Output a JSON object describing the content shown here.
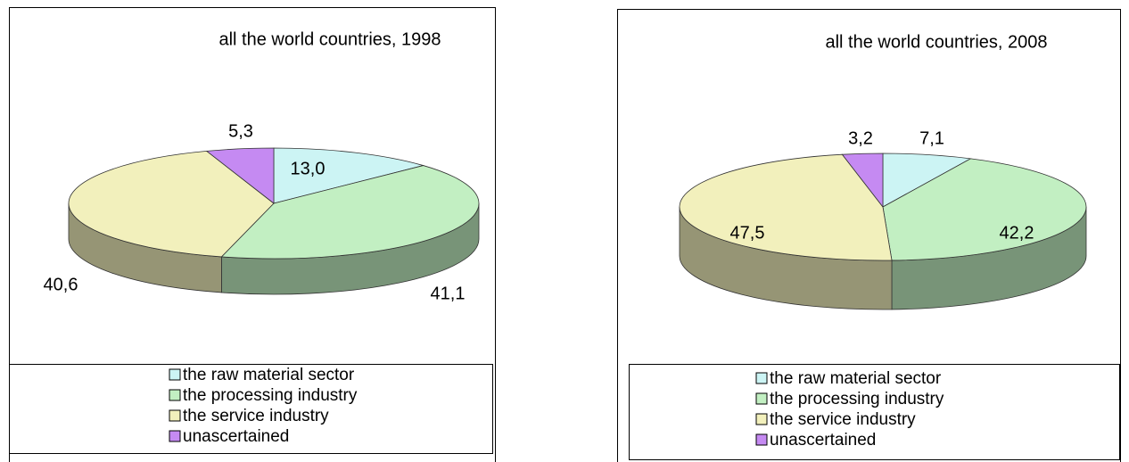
{
  "chart_data": [
    {
      "type": "pie",
      "title": "all the world countries, 1998",
      "categories": [
        "the raw material sector",
        "the processing industry",
        "the service industry",
        "unascertained"
      ],
      "values": [
        13.0,
        41.1,
        40.6,
        5.3
      ],
      "value_labels": [
        "13,0",
        "41,1",
        "40,6",
        "5,3"
      ],
      "colors": [
        "#ccf4f4",
        "#c2efc2",
        "#f2f0bc",
        "#c58af2"
      ],
      "legend": "bottom"
    },
    {
      "type": "pie",
      "title": "all the world countries, 2008",
      "categories": [
        "the raw material sector",
        "the processing industry",
        "the service industry",
        "unascertained"
      ],
      "values": [
        7.1,
        42.2,
        47.5,
        3.2
      ],
      "value_labels": [
        "7,1",
        "42,2",
        "47,5",
        "3,2"
      ],
      "colors": [
        "#ccf4f4",
        "#c2efc2",
        "#f2f0bc",
        "#c58af2"
      ],
      "legend": "bottom"
    }
  ]
}
